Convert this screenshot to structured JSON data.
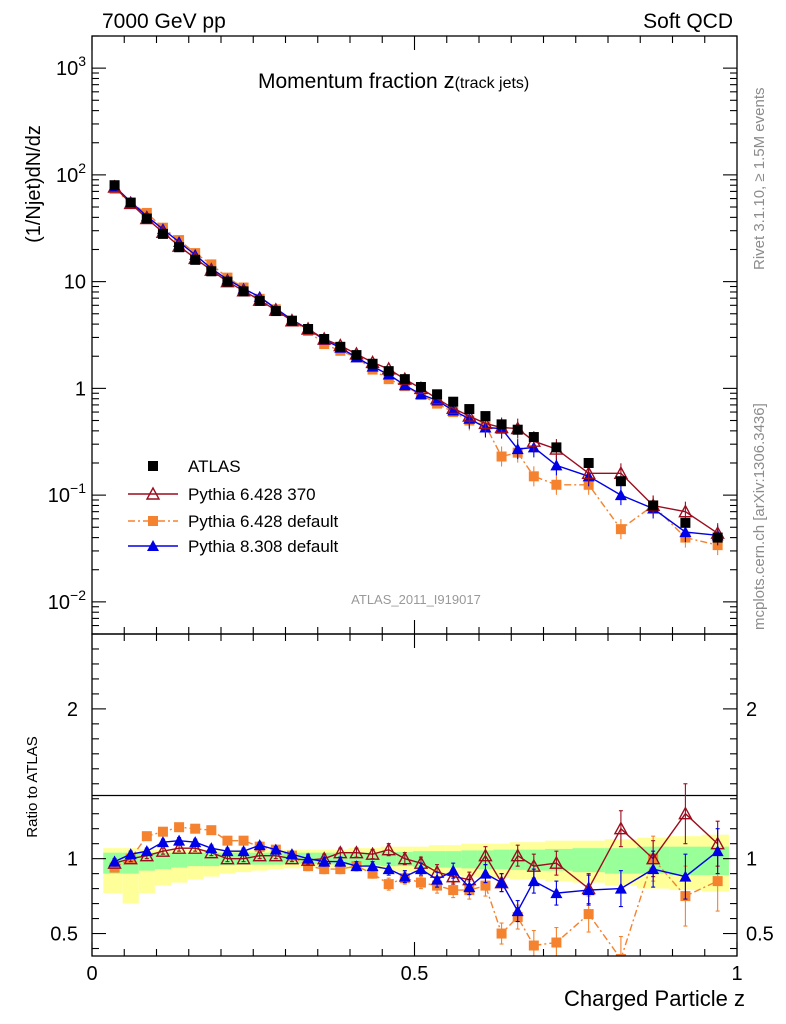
{
  "header": {
    "energy_label": "7000 GeV pp",
    "process_label": "Soft QCD",
    "title_main": "Momentum fraction ",
    "title_z": "z",
    "title_sub": "(track jets)",
    "analysis_id": "ATLAS_2011_I919017",
    "side_note_top": "Rivet 3.1.10, ≥ 1.5M events",
    "side_note_bottom": "mcplots.cern.ch [arXiv:1306.3436]"
  },
  "chart_data": [
    {
      "id": "main",
      "type": "scatter",
      "title": "Momentum fraction z(track jets)",
      "xlabel": "Charged Particle z",
      "ylabel": "(1/Njet)dN/dz",
      "xlim": [
        0,
        1
      ],
      "ylim": [
        0.005,
        2000
      ],
      "yscale": "log",
      "ytick_labels": [
        {
          "value": 0.01,
          "base": "10",
          "exp": "−2"
        },
        {
          "value": 0.1,
          "base": "10",
          "exp": "−1"
        },
        {
          "value": 1,
          "base": "1",
          "exp": ""
        },
        {
          "value": 10,
          "base": "10",
          "exp": ""
        },
        {
          "value": 100,
          "base": "10",
          "exp": "2"
        },
        {
          "value": 1000,
          "base": "10",
          "exp": "3"
        }
      ],
      "x": [
        0.035,
        0.06,
        0.085,
        0.11,
        0.135,
        0.16,
        0.185,
        0.21,
        0.235,
        0.26,
        0.285,
        0.31,
        0.335,
        0.36,
        0.385,
        0.41,
        0.435,
        0.46,
        0.485,
        0.51,
        0.535,
        0.56,
        0.585,
        0.61,
        0.635,
        0.66,
        0.685,
        0.72,
        0.77,
        0.82,
        0.87,
        0.92,
        0.97
      ],
      "legend": [
        {
          "name": "ATLAS",
          "color": "#000000",
          "marker": "square-filled",
          "line": "none"
        },
        {
          "name": "Pythia 6.428 370",
          "color": "#9b0d1e",
          "marker": "triangle-open",
          "line": "solid"
        },
        {
          "name": "Pythia 6.428 default",
          "color": "#f5822e",
          "marker": "square-filled",
          "line": "dashdot"
        },
        {
          "name": "Pythia 8.308 default",
          "color": "#0000e6",
          "marker": "triangle-filled",
          "line": "solid"
        }
      ],
      "series": [
        {
          "name": "ATLAS",
          "values": [
            80,
            55,
            39,
            28,
            21,
            16,
            12.5,
            10,
            8.1,
            6.6,
            5.3,
            4.3,
            3.6,
            2.9,
            2.45,
            2.05,
            1.7,
            1.45,
            1.22,
            1.03,
            0.88,
            0.75,
            0.64,
            0.55,
            0.46,
            0.41,
            0.35,
            0.28,
            0.2,
            0.135,
            0.08,
            0.055,
            0.04
          ]
        },
        {
          "name": "Pythia 6.428 370",
          "values": [
            77,
            54,
            39,
            29,
            21.5,
            16.5,
            12.8,
            10,
            8.2,
            6.7,
            5.4,
            4.3,
            3.6,
            2.9,
            2.52,
            2.1,
            1.75,
            1.52,
            1.22,
            1.0,
            0.8,
            0.65,
            0.55,
            0.47,
            0.43,
            0.42,
            0.32,
            0.27,
            0.16,
            0.16,
            0.08,
            0.07,
            0.044
          ]
        },
        {
          "name": "Pythia 6.428 default",
          "values": [
            74,
            54,
            44,
            32,
            24.5,
            18.5,
            14.5,
            10.9,
            8.8,
            6.9,
            5.5,
            4.3,
            3.45,
            2.6,
            2.25,
            1.95,
            1.5,
            1.22,
            1.05,
            0.87,
            0.72,
            0.6,
            0.5,
            0.45,
            0.23,
            0.25,
            0.15,
            0.125,
            0.125,
            0.048,
            0.08,
            0.04,
            0.034
          ]
        },
        {
          "name": "Pythia 8.308 default",
          "values": [
            78,
            56,
            41,
            31,
            23.5,
            17.8,
            13.3,
            10.5,
            8.6,
            7.2,
            5.6,
            4.4,
            3.6,
            2.85,
            2.4,
            1.95,
            1.6,
            1.35,
            1.07,
            0.88,
            0.77,
            0.62,
            0.52,
            0.43,
            0.42,
            0.27,
            0.28,
            0.19,
            0.15,
            0.1,
            0.075,
            0.045,
            0.042
          ]
        }
      ]
    },
    {
      "id": "ratio",
      "type": "scatter",
      "xlabel": "Charged Particle z",
      "ylabel": "Ratio to ATLAS",
      "xlim": [
        0,
        1
      ],
      "ylim": [
        0.35,
        2.5
      ],
      "yticks": [
        0.5,
        1,
        2
      ],
      "ytick_labels": [
        "0.5",
        "1",
        "2"
      ],
      "xticks": [
        0,
        0.5,
        1
      ],
      "xtick_labels": [
        "0",
        "0.5",
        "1"
      ],
      "bands": [
        {
          "name": "ATLAS uncertainty (outer)",
          "color": "#ffff99",
          "lower": [
            0.77,
            0.7,
            0.77,
            0.82,
            0.84,
            0.86,
            0.88,
            0.9,
            0.91,
            0.92,
            0.93,
            0.935,
            0.94,
            0.94,
            0.935,
            0.93,
            0.925,
            0.92,
            0.91,
            0.9,
            0.89,
            0.89,
            0.88,
            0.87,
            0.87,
            0.86,
            0.86,
            0.85,
            0.84,
            0.82,
            0.8,
            0.79,
            0.78
          ],
          "upper": [
            1.07,
            1.07,
            1.065,
            1.06,
            1.06,
            1.06,
            1.06,
            1.06,
            1.06,
            1.06,
            1.06,
            1.06,
            1.06,
            1.06,
            1.06,
            1.07,
            1.07,
            1.08,
            1.08,
            1.08,
            1.09,
            1.09,
            1.1,
            1.1,
            1.1,
            1.11,
            1.11,
            1.12,
            1.12,
            1.13,
            1.14,
            1.15,
            1.16
          ]
        },
        {
          "name": "ATLAS uncertainty (inner)",
          "color": "#99ff99",
          "lower": [
            0.9,
            0.9,
            0.92,
            0.93,
            0.94,
            0.95,
            0.95,
            0.955,
            0.96,
            0.96,
            0.96,
            0.965,
            0.965,
            0.965,
            0.96,
            0.96,
            0.955,
            0.95,
            0.95,
            0.945,
            0.94,
            0.94,
            0.935,
            0.93,
            0.93,
            0.925,
            0.92,
            0.92,
            0.91,
            0.9,
            0.9,
            0.89,
            0.89
          ],
          "upper": [
            1.04,
            1.04,
            1.04,
            1.04,
            1.04,
            1.04,
            1.04,
            1.04,
            1.04,
            1.04,
            1.04,
            1.04,
            1.04,
            1.04,
            1.04,
            1.04,
            1.04,
            1.045,
            1.045,
            1.05,
            1.05,
            1.05,
            1.055,
            1.055,
            1.06,
            1.06,
            1.06,
            1.065,
            1.07,
            1.07,
            1.08,
            1.08,
            1.08
          ]
        }
      ],
      "series": [
        {
          "name": "Pythia 6.428 370",
          "values": [
            0.97,
            1.0,
            1.02,
            1.05,
            1.07,
            1.07,
            1.04,
            1.0,
            1.0,
            1.02,
            1.02,
            1.0,
            0.99,
            1.0,
            1.04,
            1.04,
            1.03,
            1.06,
            1.0,
            0.97,
            0.91,
            0.88,
            0.86,
            1.02,
            0.84,
            1.02,
            0.95,
            0.97,
            0.8,
            1.2,
            1.0,
            1.3,
            1.1
          ],
          "err": [
            0.02,
            0.02,
            0.02,
            0.02,
            0.02,
            0.02,
            0.02,
            0.02,
            0.02,
            0.02,
            0.02,
            0.02,
            0.03,
            0.03,
            0.03,
            0.03,
            0.03,
            0.04,
            0.04,
            0.04,
            0.05,
            0.05,
            0.05,
            0.06,
            0.06,
            0.07,
            0.08,
            0.08,
            0.1,
            0.12,
            0.12,
            0.2,
            0.15
          ]
        },
        {
          "name": "Pythia 6.428 default",
          "values": [
            0.94,
            1.0,
            1.15,
            1.18,
            1.21,
            1.2,
            1.19,
            1.12,
            1.12,
            1.08,
            1.06,
            1.02,
            0.95,
            0.93,
            0.93,
            0.95,
            0.9,
            0.83,
            0.87,
            0.84,
            0.82,
            0.79,
            0.79,
            0.82,
            0.5,
            0.61,
            0.42,
            0.44,
            0.63,
            0.33,
            1.0,
            0.75,
            0.85
          ],
          "err": [
            0.02,
            0.02,
            0.02,
            0.02,
            0.02,
            0.02,
            0.02,
            0.02,
            0.02,
            0.02,
            0.02,
            0.02,
            0.03,
            0.03,
            0.03,
            0.03,
            0.03,
            0.04,
            0.04,
            0.04,
            0.05,
            0.05,
            0.06,
            0.07,
            0.07,
            0.08,
            0.1,
            0.1,
            0.12,
            0.15,
            0.15,
            0.2,
            0.2
          ]
        },
        {
          "name": "Pythia 8.308 default",
          "values": [
            0.98,
            1.03,
            1.05,
            1.11,
            1.12,
            1.11,
            1.07,
            1.05,
            1.05,
            1.09,
            1.06,
            1.03,
            1.0,
            0.98,
            0.98,
            0.95,
            0.95,
            0.93,
            0.88,
            0.93,
            0.86,
            0.92,
            0.81,
            0.9,
            0.84,
            0.65,
            0.85,
            0.77,
            0.79,
            0.8,
            0.93,
            0.88,
            1.05
          ],
          "err": [
            0.02,
            0.02,
            0.02,
            0.02,
            0.02,
            0.02,
            0.02,
            0.02,
            0.02,
            0.02,
            0.02,
            0.02,
            0.03,
            0.03,
            0.03,
            0.03,
            0.03,
            0.04,
            0.04,
            0.04,
            0.05,
            0.05,
            0.05,
            0.06,
            0.06,
            0.07,
            0.08,
            0.08,
            0.1,
            0.12,
            0.12,
            0.15,
            0.15
          ]
        }
      ]
    }
  ]
}
